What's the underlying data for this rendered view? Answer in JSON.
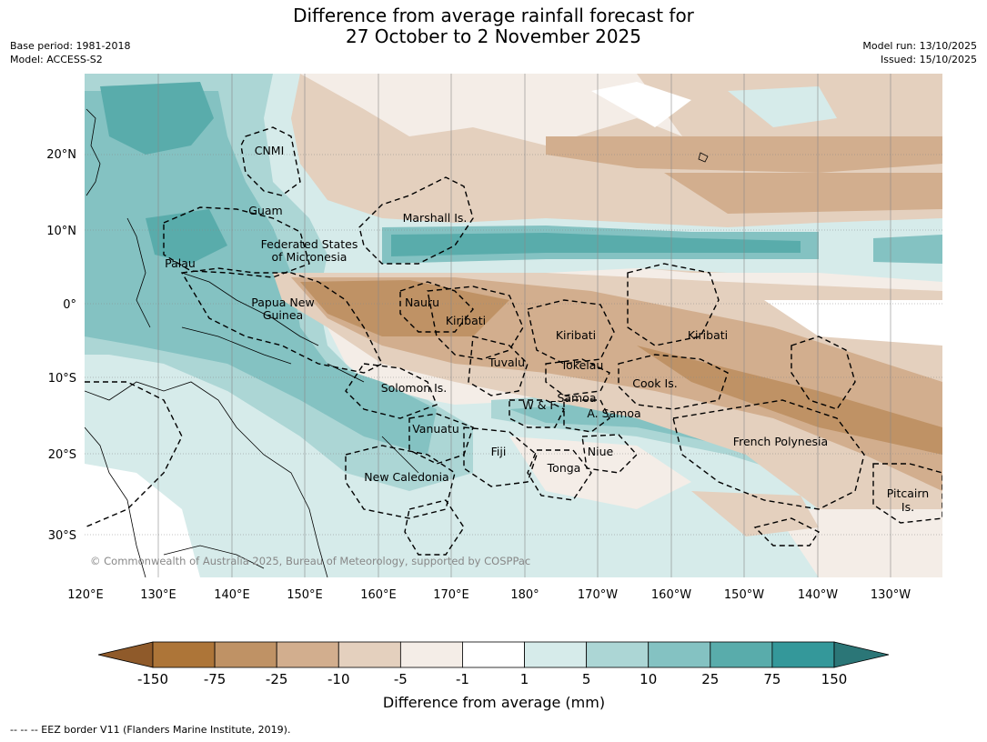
{
  "title_line1": "Difference from average rainfall forecast for",
  "title_line2": "27 October to 2 November 2025",
  "base_period": "Base period: 1981-2018",
  "model": "Model: ACCESS-S2",
  "model_run": "Model run: 13/10/2025",
  "issued": "Issued: 15/10/2025",
  "copyright": "© Commonwealth of Australia 2025, Bureau of Meteorology, supported by COSPPac",
  "lon_ticks": [
    "120°E",
    "130°E",
    "140°E",
    "150°E",
    "160°E",
    "170°E",
    "180°",
    "170°W",
    "160°W",
    "150°W",
    "140°W",
    "130°W"
  ],
  "lat_ticks": [
    "20°N",
    "10°N",
    "0°",
    "10°S",
    "20°S",
    "30°S"
  ],
  "regions": {
    "cnmi": "CNMI",
    "guam": "Guam",
    "marshall": "Marshall Is.",
    "fsm1": "Federated States",
    "fsm2": "of Micronesia",
    "palau": "Palau",
    "png1": "Papua New",
    "png2": "Guinea",
    "nauru": "Nauru",
    "kiribati_w": "Kiribati",
    "kiribati_c": "Kiribati",
    "kiribati_e": "Kiribati",
    "tuvalu": "Tuvalu",
    "tokelau": "Tokelau",
    "cook": "Cook Is.",
    "solomon": "Solomon Is.",
    "samoa": "Samoa",
    "wf": "W & F",
    "asamoa": "A. Samoa",
    "vanuatu": "Vanuatu",
    "fiji": "Fiji",
    "niue": "Niue",
    "tonga": "Tonga",
    "fp": "French Polynesia",
    "newcal": "New Caledonia",
    "pitcairn1": "Pitcairn",
    "pitcairn2": "Is."
  },
  "colorbar": {
    "title": "Difference from average (mm)",
    "ticks": [
      "-150",
      "-75",
      "-25",
      "-10",
      "-5",
      "-1",
      "1",
      "5",
      "10",
      "25",
      "75",
      "150"
    ],
    "colors": [
      "#ad7538",
      "#bf9265",
      "#d2ae8e",
      "#e4d0be",
      "#f4ede7",
      "#ffffff",
      "#d6ebea",
      "#acd6d5",
      "#84c2c2",
      "#59acab",
      "#34989a"
    ],
    "under_color": "#8f5a2a",
    "over_color": "#2b7677"
  },
  "footer": "--  --  -- EEZ border V11 (Flanders Marine Institute, 2019)."
}
